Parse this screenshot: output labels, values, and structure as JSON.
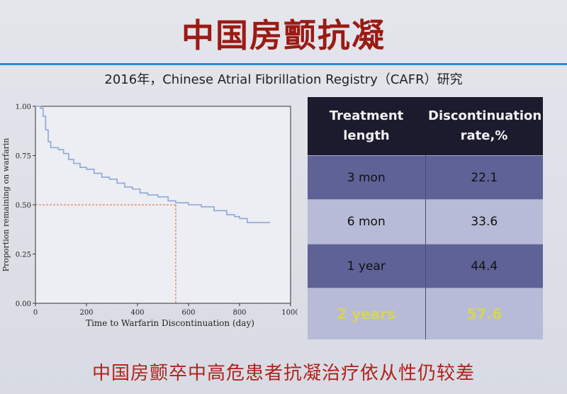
{
  "slide": {
    "title": "中国房颤抗凝",
    "subtitle": "2016年，Chinese Atrial Fibrillation Registry（CAFR）研究",
    "footer": "中国房颤卒中高危患者抗凝治疗依从性仍较差"
  },
  "chart_data": {
    "type": "line",
    "xlabel": "Time to Warfarin Discontinuation (day)",
    "ylabel": "Proportion remaining on warfarin",
    "xlim": [
      0,
      1000
    ],
    "ylim": [
      0,
      1
    ],
    "xticks": [
      0,
      200,
      400,
      600,
      800,
      1000
    ],
    "yticks": [
      0.0,
      0.25,
      0.5,
      0.75,
      1.0
    ],
    "ytick_labels": [
      "0.00",
      "0.25",
      "0.50",
      "0.75",
      "1.00"
    ],
    "grid": false,
    "series": [
      {
        "color": "#8fa6d8",
        "x": [
          0,
          10,
          20,
          30,
          40,
          50,
          60,
          70,
          90,
          110,
          130,
          150,
          175,
          200,
          230,
          260,
          290,
          320,
          350,
          380,
          410,
          440,
          480,
          520,
          550,
          600,
          650,
          700,
          750,
          780,
          800,
          830,
          860,
          900,
          920
        ],
        "y": [
          1.0,
          1.0,
          0.99,
          0.95,
          0.88,
          0.82,
          0.79,
          0.79,
          0.78,
          0.76,
          0.73,
          0.71,
          0.69,
          0.68,
          0.66,
          0.64,
          0.63,
          0.61,
          0.59,
          0.58,
          0.56,
          0.55,
          0.54,
          0.52,
          0.51,
          0.5,
          0.49,
          0.47,
          0.45,
          0.44,
          0.43,
          0.41,
          0.41,
          0.41,
          0.41
        ]
      }
    ],
    "reference": {
      "color": "#d9663a",
      "y": 0.5,
      "x": 550
    }
  },
  "table": {
    "headers": [
      "Treatment length",
      "Discontinuation rate,%"
    ],
    "rows": [
      {
        "length": "3 mon",
        "rate": "22.1",
        "style": "dark"
      },
      {
        "length": "6 mon",
        "rate": "33.6",
        "style": "light"
      },
      {
        "length": "1 year",
        "rate": "44.4",
        "style": "dark"
      },
      {
        "length": "2 years",
        "rate": "57.6",
        "style": "light last"
      }
    ]
  }
}
